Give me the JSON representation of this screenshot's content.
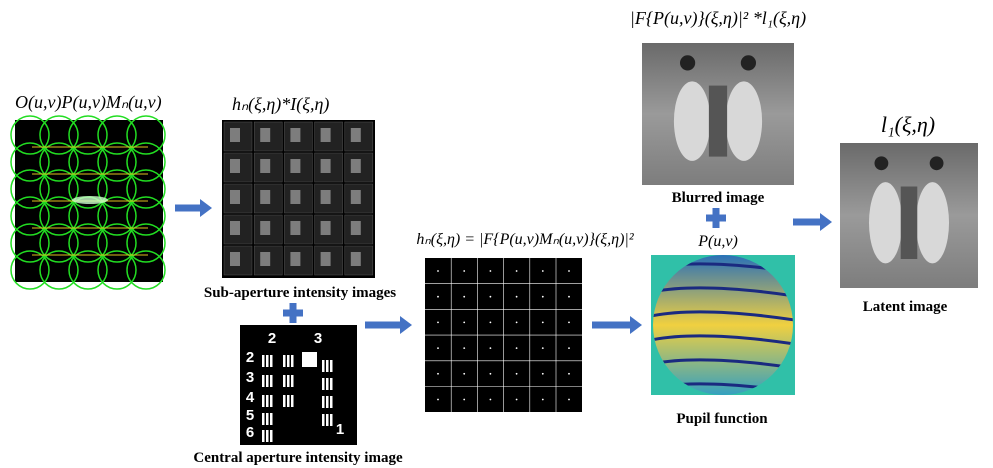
{
  "formulas": {
    "object": "O(u,v)P(u,v)Mₙ(u,v)",
    "sub_aperture": "hₙ(ξ,η)*I(ξ,η)",
    "blurred": "|F{P(u,v)}(ξ,η)|² *l₁(ξ,η)",
    "latent": "l₁(ξ,η)",
    "psf": "hₙ(ξ,η) = |F{P(u,v)Mₙ(u,v)}(ξ,η)|²",
    "pupil": "P(u,v)"
  },
  "labels": {
    "sub_aperture": "Sub-aperture intensity images",
    "central": "Central aperture intensity image",
    "blurred": "Blurred image",
    "latent": "Latent image",
    "pupil": "Pupil function"
  },
  "test_chart": {
    "numbers": [
      "2",
      "3",
      "2",
      "3",
      "4",
      "5",
      "6",
      "1"
    ]
  }
}
